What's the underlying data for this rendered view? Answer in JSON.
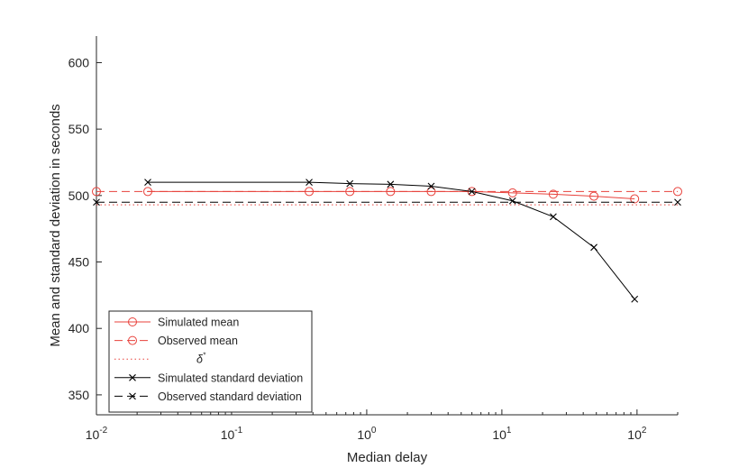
{
  "chart_data": {
    "type": "line",
    "xlabel": "Median delay",
    "ylabel": "Mean and standard deviation in seconds",
    "xscale": "log",
    "xlim": [
      0.01,
      200
    ],
    "ylim": [
      335,
      620
    ],
    "grid": false,
    "legend_position": "bottom-left",
    "x_ticks": [
      {
        "value": 0.01,
        "base": "10",
        "exp": "-2"
      },
      {
        "value": 0.1,
        "base": "10",
        "exp": "-1"
      },
      {
        "value": 1,
        "base": "10",
        "exp": "0"
      },
      {
        "value": 10,
        "base": "10",
        "exp": "1"
      },
      {
        "value": 100,
        "base": "10",
        "exp": "2"
      }
    ],
    "y_ticks": [
      350,
      400,
      450,
      500,
      550,
      600
    ],
    "series": [
      {
        "name": "Simulated mean",
        "color": "#e8413b",
        "line": "solid",
        "marker": "circle",
        "x": [
          0.024,
          0.375,
          0.75,
          1.5,
          3.0,
          6.0,
          12.0,
          24.0,
          48.0,
          96.0
        ],
        "y": [
          503,
          503,
          503,
          503,
          503,
          503,
          502,
          501,
          499.5,
          497.5
        ]
      },
      {
        "name": "Observed mean",
        "color": "#e8413b",
        "line": "dashed",
        "marker": "circle",
        "x": [
          0.01,
          200
        ],
        "y": [
          503,
          503
        ]
      },
      {
        "name": "δ",
        "name_sup": "*",
        "color": "#e8413b",
        "line": "dotted",
        "marker": "none",
        "x": [
          0.01,
          200
        ],
        "y": [
          493,
          493
        ]
      },
      {
        "name": "Simulated standard deviation",
        "color": "#000000",
        "line": "solid",
        "marker": "cross",
        "x": [
          0.024,
          0.375,
          0.75,
          1.5,
          3.0,
          6.0,
          12.0,
          24.0,
          48.0,
          96.0
        ],
        "y": [
          510,
          510,
          509,
          508.5,
          507,
          503,
          496,
          484,
          461,
          422
        ]
      },
      {
        "name": "Observed standard deviation",
        "color": "#000000",
        "line": "dashed",
        "marker": "cross",
        "x": [
          0.01,
          200
        ],
        "y": [
          495,
          495
        ]
      }
    ]
  }
}
